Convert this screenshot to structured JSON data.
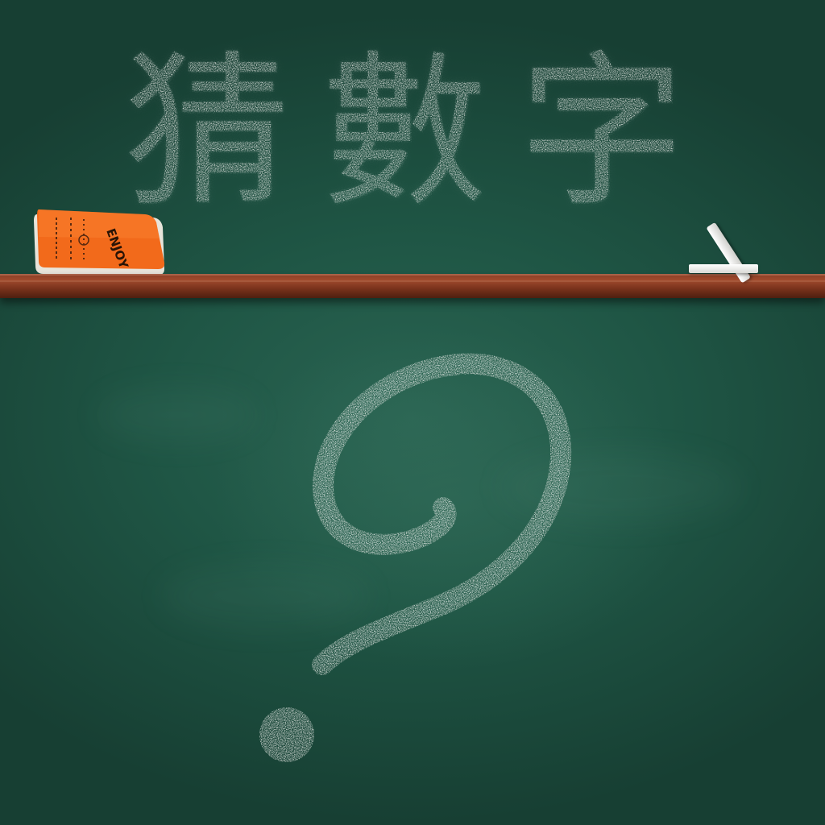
{
  "game": {
    "title": "猜數字",
    "eraser_label": "ENJOY"
  },
  "colors": {
    "board": "#1f5645",
    "chalk": "#f1f1ee",
    "tray_wood": "#8a3e25",
    "eraser_orange": "#f26a1b"
  },
  "icons": {
    "question_mark": "chalk-question-mark-icon",
    "eraser": "eraser-icon",
    "chalk": "chalk-stick-icon"
  }
}
